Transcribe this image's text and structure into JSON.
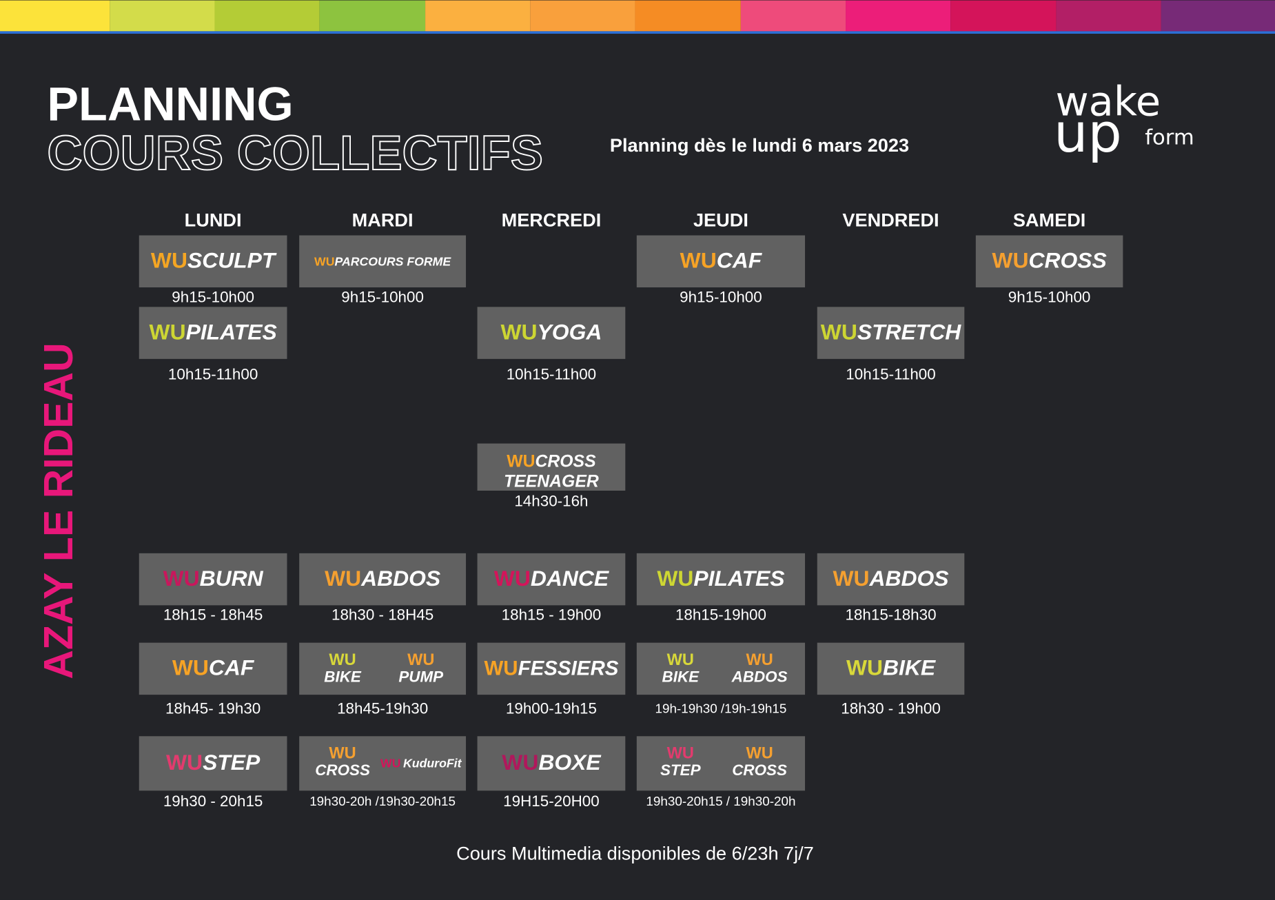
{
  "header": {
    "title": "PLANNING",
    "title2": "COURS COLLECTIFS",
    "subtitle": "Planning dès le lundi 6 mars 2023",
    "logo": {
      "wake": "wake",
      "up": "up",
      "form": "form"
    }
  },
  "location": "AZAY LE RIDEAU",
  "days": [
    {
      "name": "LUNDI",
      "classes": [
        {
          "items": [
            {
              "prefix": "WU",
              "name": "SCULPT",
              "color": "#f5a623"
            }
          ],
          "time": "9h15-10h00"
        },
        {
          "items": [
            {
              "prefix": "WU",
              "name": "PILATES",
              "color": "#cdd633"
            }
          ],
          "time": "10h15-11h00"
        },
        {
          "items": [
            {
              "prefix": "WU",
              "name": "BURN",
              "color": "#c8175c"
            }
          ],
          "time": "18h15 - 18h45"
        },
        {
          "items": [
            {
              "prefix": "WU",
              "name": "CAF",
              "color": "#f7a325"
            }
          ],
          "time": "18h45- 19h30"
        },
        {
          "items": [
            {
              "prefix": "WU",
              "name": "STEP",
              "color": "#e23b6e"
            }
          ],
          "time": "19h30 - 20h15"
        }
      ]
    },
    {
      "name": "MARDI",
      "classes": [
        {
          "items": [
            {
              "prefix": "WU",
              "name": "PARCOURS FORME",
              "color": "#f7a325"
            }
          ],
          "time": "9h15-10h00"
        },
        {
          "items": [
            {
              "prefix": "WU",
              "name": "ABDOS",
              "color": "#f5a030"
            }
          ],
          "time": "18h30 - 18H45"
        },
        {
          "items": [
            {
              "prefix": "WU",
              "name": "BIKE",
              "color": "#d8d83a"
            },
            {
              "prefix": "WU",
              "name": "PUMP",
              "color": "#f5a030"
            }
          ],
          "time": "18h45-19h30"
        },
        {
          "items": [
            {
              "prefix": "WU",
              "name": "CROSS",
              "color": "#f5a030"
            },
            {
              "prefix": "WU",
              "name": "KuduroFit",
              "color": "#d4145a"
            }
          ],
          "time": "19h30-20h /19h30-20h15"
        }
      ]
    },
    {
      "name": "MERCREDI",
      "classes": [
        {
          "items": [
            {
              "prefix": "WU",
              "name": "YOGA",
              "color": "#cdd633"
            }
          ],
          "time": "10h15-11h00"
        },
        {
          "items": [
            {
              "prefix": "WU",
              "name": "CROSS",
              "line2": "TEENAGER",
              "color": "#f7a325"
            }
          ],
          "time": "14h30-16h"
        },
        {
          "items": [
            {
              "prefix": "WU",
              "name": "DANCE",
              "color": "#d4145a"
            }
          ],
          "time": "18h15 - 19h00"
        },
        {
          "items": [
            {
              "prefix": "WU",
              "name": "FESSIERS",
              "color": "#f7a325"
            }
          ],
          "time": "19h00-19h15"
        },
        {
          "items": [
            {
              "prefix": "WU",
              "name": "BOXE",
              "color": "#b0185c"
            }
          ],
          "time": "19H15-20H00"
        }
      ]
    },
    {
      "name": "JEUDI",
      "classes": [
        {
          "items": [
            {
              "prefix": "WU",
              "name": "CAF",
              "color": "#f7a325"
            }
          ],
          "time": "9h15-10h00"
        },
        {
          "items": [
            {
              "prefix": "WU",
              "name": "PILATES",
              "color": "#cdd633"
            }
          ],
          "time": "18h15-19h00"
        },
        {
          "items": [
            {
              "prefix": "WU",
              "name": "BIKE",
              "color": "#d8d83a"
            },
            {
              "prefix": "WU",
              "name": "ABDOS",
              "color": "#f5a030"
            }
          ],
          "time": "19h-19h30 /19h-19h15"
        },
        {
          "items": [
            {
              "prefix": "WU",
              "name": "STEP",
              "color": "#e23b6e"
            },
            {
              "prefix": "WU",
              "name": "CROSS",
              "color": "#f5a030"
            }
          ],
          "time": "19h30-20h15 / 19h30-20h"
        }
      ]
    },
    {
      "name": "VENDREDI",
      "classes": [
        {
          "items": [
            {
              "prefix": "WU",
              "name": "STRETCH",
              "color": "#cdd633"
            }
          ],
          "time": "10h15-11h00"
        },
        {
          "items": [
            {
              "prefix": "WU",
              "name": "ABDOS",
              "color": "#f5a030"
            }
          ],
          "time": "18h15-18h30"
        },
        {
          "items": [
            {
              "prefix": "WU",
              "name": "BIKE",
              "color": "#d8d83a"
            }
          ],
          "time": "18h30 - 19h00"
        }
      ]
    },
    {
      "name": "SAMEDI",
      "classes": [
        {
          "items": [
            {
              "prefix": "WU",
              "name": "CROSS",
              "color": "#f5a030"
            }
          ],
          "time": "9h15-10h00"
        }
      ]
    }
  ],
  "footer": "Cours Multimedia disponibles de 6/23h 7j/7"
}
